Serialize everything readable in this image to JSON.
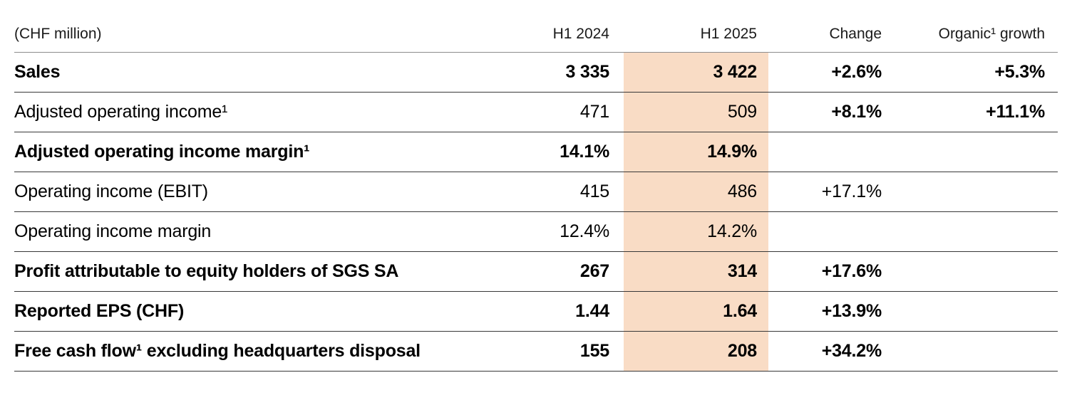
{
  "table": {
    "unit_label": "(CHF million)",
    "columns": [
      "H1 2024",
      "H1 2025",
      "Change",
      "Organic¹ growth"
    ],
    "highlight_color": "#f9dcc5",
    "header_rule_color": "#8c8c8c",
    "row_rule_color": "#383838",
    "rows": [
      {
        "label": "Sales",
        "h1_2024": "3 335",
        "h1_2025": "3 422",
        "change": "+2.6%",
        "organic": "+5.3%"
      },
      {
        "label": "Adjusted operating income¹",
        "h1_2024": "471",
        "h1_2025": "509",
        "change": "+8.1%",
        "organic": "+11.1%"
      },
      {
        "label": "Adjusted operating income margin¹",
        "h1_2024": "14.1%",
        "h1_2025": "14.9%",
        "change": "",
        "organic": ""
      },
      {
        "label": "Operating income (EBIT)",
        "h1_2024": "415",
        "h1_2025": "486",
        "change": "+17.1%",
        "organic": ""
      },
      {
        "label": "Operating income margin",
        "h1_2024": "12.4%",
        "h1_2025": "14.2%",
        "change": "",
        "organic": ""
      },
      {
        "label": "Profit attributable to equity holders of SGS SA",
        "h1_2024": "267",
        "h1_2025": "314",
        "change": "+17.6%",
        "organic": ""
      },
      {
        "label": "Reported EPS (CHF)",
        "h1_2024": "1.44",
        "h1_2025": "1.64",
        "change": "+13.9%",
        "organic": ""
      },
      {
        "label": "Free cash flow¹ excluding headquarters disposal",
        "h1_2024": "155",
        "h1_2025": "208",
        "change": "+34.2%",
        "organic": ""
      }
    ]
  }
}
